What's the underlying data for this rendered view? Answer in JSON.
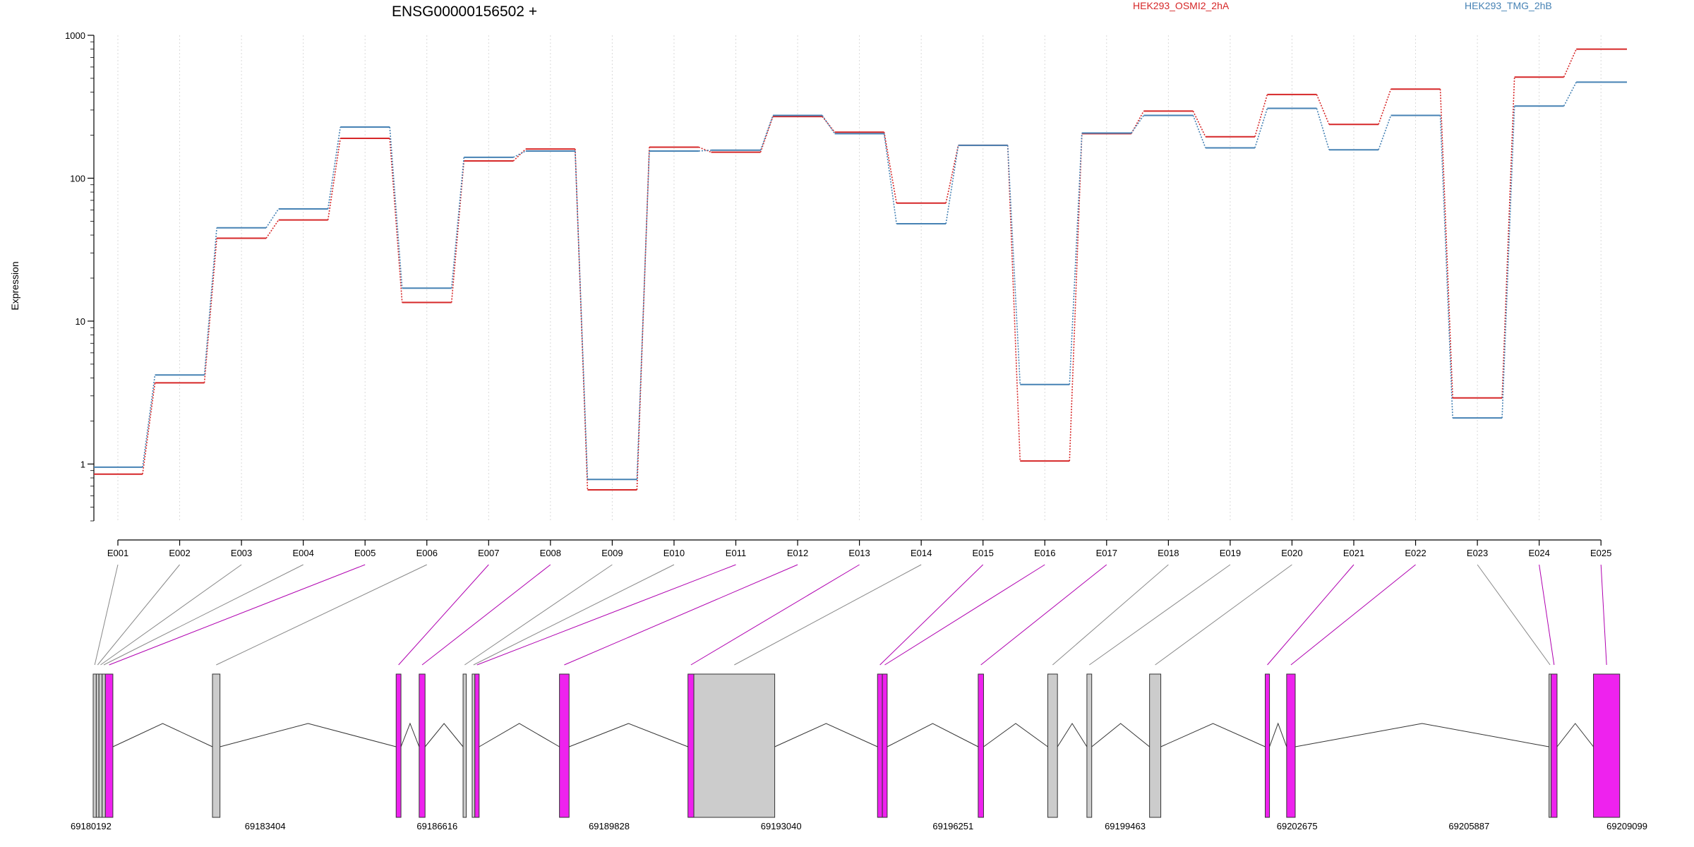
{
  "chart_data": {
    "type": "line",
    "title": "ENSG00000156502 +",
    "ylabel": "Expression",
    "xlabel": "",
    "yscale": "log",
    "ylim": [
      0.4,
      1000
    ],
    "yticks": [
      {
        "value": 1,
        "label": "1"
      },
      {
        "value": 10,
        "label": "10"
      },
      {
        "value": 100,
        "label": "100"
      },
      {
        "value": 1000,
        "label": "1000"
      }
    ],
    "grid": "vertical dotted at each exon",
    "legend_placement": "top-right",
    "categories": [
      "E001",
      "E002",
      "E003",
      "E004",
      "E005",
      "E006",
      "E007",
      "E008",
      "E009",
      "E010",
      "E011",
      "E012",
      "E013",
      "E014",
      "E015",
      "E016",
      "E017",
      "E018",
      "E019",
      "E020",
      "E021",
      "E022",
      "E023",
      "E024",
      "E025"
    ],
    "series": [
      {
        "name": "HEK293_OSMI2_2hA",
        "color": "#d62728",
        "values": [
          0.85,
          3.7,
          38,
          51,
          190,
          13.5,
          132,
          160,
          0.66,
          165,
          152,
          270,
          210,
          67,
          170,
          1.05,
          205,
          295,
          195,
          385,
          238,
          420,
          2.9,
          510,
          800
        ]
      },
      {
        "name": "HEK293_TMG_2hB",
        "color": "#4682b4",
        "values": [
          0.95,
          4.2,
          45,
          61,
          228,
          17,
          140,
          155,
          0.78,
          155,
          157,
          275,
          205,
          48,
          170,
          3.6,
          207,
          275,
          163,
          308,
          158,
          275,
          2.1,
          320,
          470
        ]
      }
    ],
    "gene_model": {
      "coordinates_label": [
        "69180192",
        "69183404",
        "69186616",
        "69189828",
        "69193040",
        "69196251",
        "69199463",
        "69202675",
        "69205887",
        "69209099"
      ],
      "range": [
        69180192,
        69209099
      ],
      "highlight_color": "#ee22ee",
      "normal_color": "#cccccc",
      "exons": [
        {
          "id": "E001",
          "start": 69180192,
          "end": 69180250,
          "significant": false
        },
        {
          "id": "E002",
          "start": 69180250,
          "end": 69180300,
          "significant": false
        },
        {
          "id": "E003",
          "start": 69180300,
          "end": 69180360,
          "significant": false
        },
        {
          "id": "E004",
          "start": 69180360,
          "end": 69180420,
          "significant": false
        },
        {
          "id": "E005",
          "start": 69180420,
          "end": 69180560,
          "significant": true
        },
        {
          "id": "E006",
          "start": 69182420,
          "end": 69182560,
          "significant": false
        },
        {
          "id": "E007",
          "start": 69185850,
          "end": 69185940,
          "significant": true
        },
        {
          "id": "E008",
          "start": 69186280,
          "end": 69186390,
          "significant": true
        },
        {
          "id": "E009",
          "start": 69187100,
          "end": 69187160,
          "significant": false
        },
        {
          "id": "E010",
          "start": 69187270,
          "end": 69187320,
          "significant": false
        },
        {
          "id": "E011",
          "start": 69187320,
          "end": 69187400,
          "significant": true
        },
        {
          "id": "E012",
          "start": 69188900,
          "end": 69189080,
          "significant": true
        },
        {
          "id": "E013",
          "start": 69191300,
          "end": 69191410,
          "significant": true
        },
        {
          "id": "E014",
          "start": 69191410,
          "end": 69192920,
          "significant": false
        },
        {
          "id": "E015",
          "start": 69194840,
          "end": 69194930,
          "significant": true
        },
        {
          "id": "E016",
          "start": 69194930,
          "end": 69195020,
          "significant": true
        },
        {
          "id": "E017",
          "start": 69196720,
          "end": 69196820,
          "significant": true
        },
        {
          "id": "E018",
          "start": 69198020,
          "end": 69198200,
          "significant": false
        },
        {
          "id": "E019",
          "start": 69198750,
          "end": 69198840,
          "significant": false
        },
        {
          "id": "E020",
          "start": 69199920,
          "end": 69200130,
          "significant": false
        },
        {
          "id": "E021",
          "start": 69202080,
          "end": 69202160,
          "significant": true
        },
        {
          "id": "E022",
          "start": 69202480,
          "end": 69202640,
          "significant": true
        },
        {
          "id": "E023",
          "start": 69207380,
          "end": 69207420,
          "significant": false
        },
        {
          "id": "E024",
          "start": 69207420,
          "end": 69207530,
          "significant": true
        },
        {
          "id": "E025",
          "start": 69208210,
          "end": 69208700,
          "significant": true
        }
      ],
      "introns": [
        [
          69180560,
          69182420
        ],
        [
          69182560,
          69185850
        ],
        [
          69185940,
          69186280
        ],
        [
          69186390,
          69187100
        ],
        [
          69187400,
          69188900
        ],
        [
          69189080,
          69191300
        ],
        [
          69192920,
          69194840
        ],
        [
          69195020,
          69196720
        ],
        [
          69196820,
          69198020
        ],
        [
          69198200,
          69198750
        ],
        [
          69198840,
          69199920
        ],
        [
          69200130,
          69202080
        ],
        [
          69202160,
          69202480
        ],
        [
          69202640,
          69207380
        ],
        [
          69207530,
          69208210
        ]
      ]
    }
  }
}
